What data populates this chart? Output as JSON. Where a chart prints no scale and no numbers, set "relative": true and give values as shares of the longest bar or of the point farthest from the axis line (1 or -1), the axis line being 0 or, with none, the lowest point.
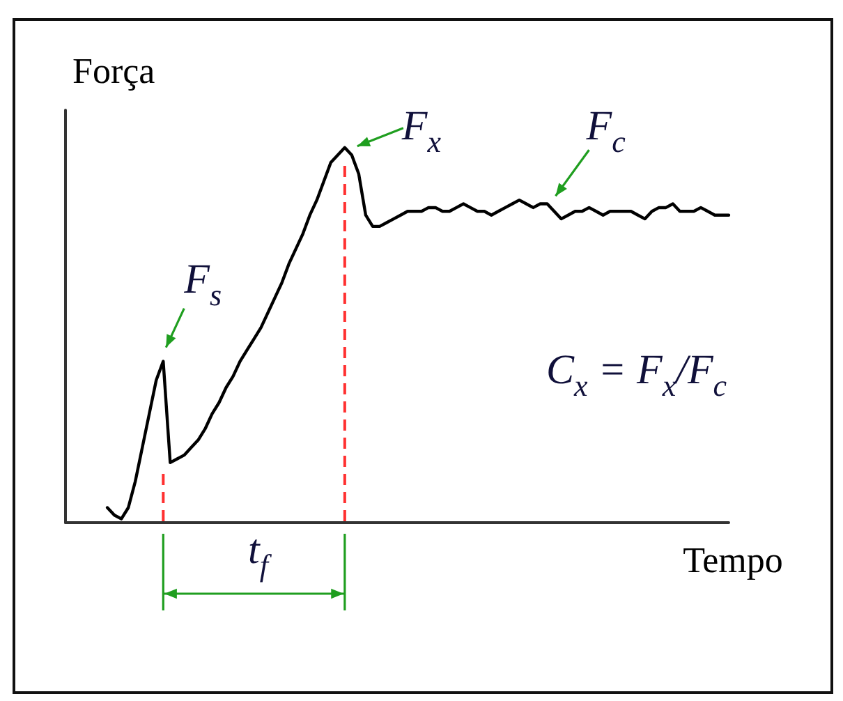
{
  "chart_data": {
    "type": "line",
    "ylabel": "Força",
    "xlabel": "Tempo",
    "annotations": [
      "F$_{s}$",
      "F$_{x}$",
      "F$_{c}$",
      "t$_{f}$",
      "C$_{x}$ = F$_{x}$/F$_{c}$"
    ],
    "categories": [
      null,
      null,
      null,
      null,
      null,
      null,
      null,
      null,
      null,
      null,
      null,
      null,
      null,
      null,
      null,
      null,
      null,
      null,
      null,
      null,
      null,
      null,
      null,
      null,
      null,
      null,
      null,
      null,
      null,
      null,
      null,
      null,
      null,
      null,
      null,
      null,
      null,
      null,
      null,
      null,
      null,
      null,
      null,
      null,
      null,
      null,
      null,
      null,
      null,
      null,
      null,
      null,
      null,
      null,
      null,
      null,
      null,
      null,
      null,
      null,
      null,
      null,
      null,
      null,
      null,
      null,
      null,
      null,
      null,
      null,
      null,
      null,
      null,
      null,
      null,
      null,
      null,
      null,
      null,
      null,
      null,
      null,
      null,
      null,
      null,
      null,
      null,
      null,
      null,
      null,
      null,
      null,
      null,
      null,
      null,
      null
    ],
    "series": [
      {
        "color": "#000000",
        "values": [
          null,
          null,
          null,
          null,
          null,
          null,
          0.04,
          0.02,
          0.01,
          0.04,
          0.11,
          0.2,
          0.29,
          0.38,
          0.43,
          0.16,
          0.17,
          0.18,
          0.2,
          0.22,
          0.25,
          0.29,
          0.32,
          0.36,
          0.39,
          0.43,
          0.46,
          0.49,
          0.52,
          0.56,
          0.6,
          0.64,
          0.69,
          0.73,
          0.77,
          0.82,
          0.86,
          0.91,
          0.96,
          0.98,
          1,
          0.98,
          0.93,
          0.82,
          0.79,
          0.79,
          0.8,
          0.81,
          0.82,
          0.83,
          0.83,
          0.83,
          0.84,
          0.84,
          0.83,
          0.83,
          0.84,
          0.85,
          0.84,
          0.83,
          0.83,
          0.82,
          0.83,
          0.84,
          0.85,
          0.86,
          0.85,
          0.84,
          0.85,
          0.85,
          0.83,
          0.81,
          0.82,
          0.83,
          0.83,
          0.84,
          0.83,
          0.82,
          0.83,
          0.83,
          0.83,
          0.83,
          0.82,
          0.81,
          0.83,
          0.84,
          0.84,
          0.85,
          0.83,
          0.83,
          0.83,
          0.84,
          0.83,
          0.82,
          0.82,
          0.82
        ]
      }
    ],
    "relative": true,
    "line_style": "solid"
  }
}
